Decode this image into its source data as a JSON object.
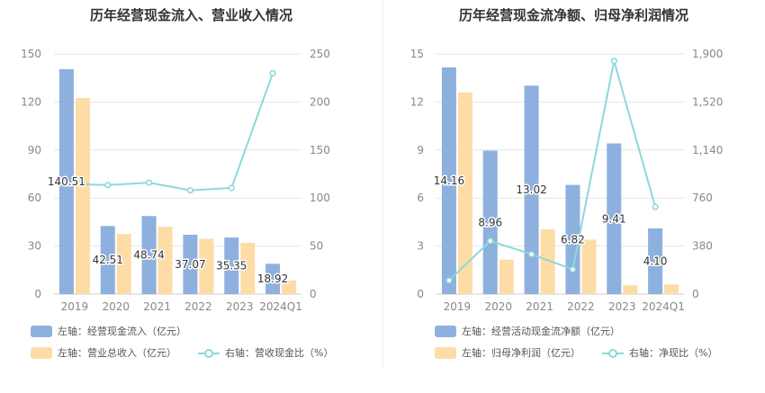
{
  "colors": {
    "bar1": "#8eb0de",
    "bar2": "#fedca6",
    "line": "#8dd8dc",
    "grid": "#e6e6e6",
    "axis": "#888888",
    "label": "#333333"
  },
  "chart_data": [
    {
      "type": "bar",
      "title": "历年经营现金流入、营业收入情况",
      "categories": [
        "2019",
        "2020",
        "2021",
        "2022",
        "2023",
        "2024Q1"
      ],
      "left_axis": {
        "ylim": [
          0,
          150
        ],
        "ticks": [
          "0",
          "30",
          "60",
          "90",
          "120",
          "150"
        ],
        "tick_values": [
          0,
          30,
          60,
          90,
          120,
          150
        ]
      },
      "right_axis": {
        "ylim": [
          0,
          250
        ],
        "ticks": [
          "0",
          "50",
          "100",
          "150",
          "200",
          "250"
        ],
        "tick_values": [
          0,
          50,
          100,
          150,
          200,
          250
        ]
      },
      "series": [
        {
          "name": "左轴：经营现金流入（亿元）",
          "kind": "bar",
          "axis": "left",
          "values": [
            140.51,
            42.51,
            48.74,
            37.07,
            35.35,
            18.92
          ],
          "labels": [
            "140.51",
            "42.51",
            "48.74",
            "37.07",
            "35.35",
            "18.92"
          ]
        },
        {
          "name": "左轴：营业总收入（亿元）",
          "kind": "bar",
          "axis": "left",
          "values": [
            122.5,
            37.5,
            42.0,
            34.5,
            32.0,
            8.5
          ]
        },
        {
          "name": "右轴：营收现金比（%）",
          "kind": "line",
          "axis": "right",
          "values": [
            114.7,
            113.5,
            116.0,
            108.0,
            110.5,
            230.0
          ]
        }
      ]
    },
    {
      "type": "bar",
      "title": "历年经营现金流净额、归母净利润情况",
      "categories": [
        "2019",
        "2020",
        "2021",
        "2022",
        "2023",
        "2024Q1"
      ],
      "left_axis": {
        "ylim": [
          0,
          15
        ],
        "ticks": [
          "0",
          "3",
          "6",
          "9",
          "12",
          "15"
        ],
        "tick_values": [
          0,
          3,
          6,
          9,
          12,
          15
        ]
      },
      "right_axis": {
        "ylim": [
          0,
          1900
        ],
        "ticks": [
          "0",
          "380",
          "760",
          "1,140",
          "1,520",
          "1,900"
        ],
        "tick_values": [
          0,
          380,
          760,
          1140,
          1520,
          1900
        ]
      },
      "series": [
        {
          "name": "左轴：经营活动现金流净额（亿元）",
          "kind": "bar",
          "axis": "left",
          "values": [
            14.16,
            8.96,
            13.02,
            6.82,
            9.41,
            4.1
          ],
          "labels": [
            "14.16",
            "8.96",
            "13.02",
            "6.82",
            "9.41",
            "4.10"
          ]
        },
        {
          "name": "左轴：归母净利润（亿元）",
          "kind": "bar",
          "axis": "left",
          "values": [
            12.6,
            2.15,
            4.05,
            3.4,
            0.55,
            0.6
          ]
        },
        {
          "name": "右轴：净现比（%）",
          "kind": "line",
          "axis": "right",
          "values": [
            108,
            420,
            315,
            195,
            1845,
            690
          ]
        }
      ]
    }
  ]
}
